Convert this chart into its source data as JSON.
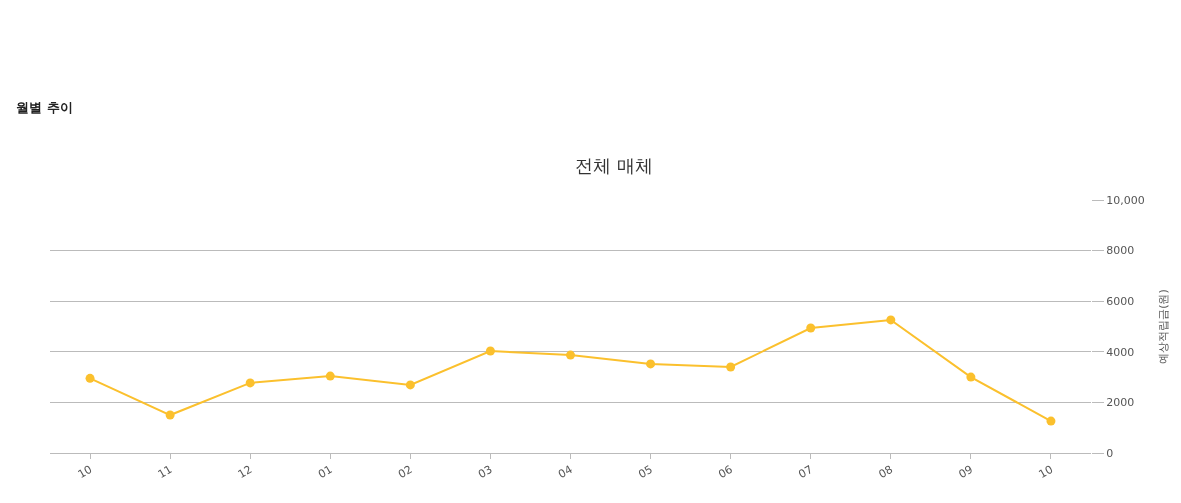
{
  "chart_data": {
    "type": "line",
    "title": "전체 매체",
    "ylabel": "예상적립금(원)",
    "annotations": [
      "월별 추이"
    ],
    "categories": [
      "10",
      "11",
      "12",
      "01",
      "02",
      "03",
      "04",
      "05",
      "06",
      "07",
      "08",
      "09",
      "10"
    ],
    "series": [
      {
        "color": "#fbc02d",
        "values": [
          2950,
          1500,
          2770,
          3040,
          2690,
          4030,
          3870,
          3520,
          3400,
          4940,
          5260,
          3000,
          1260
        ]
      }
    ],
    "ylim": [
      0,
      10000
    ],
    "yticks": [
      0,
      2000,
      4000,
      6000,
      8000,
      {
        "value": 10000,
        "label": "10,000"
      }
    ],
    "grid": "y",
    "marker": "circle",
    "line_style": "solid"
  }
}
